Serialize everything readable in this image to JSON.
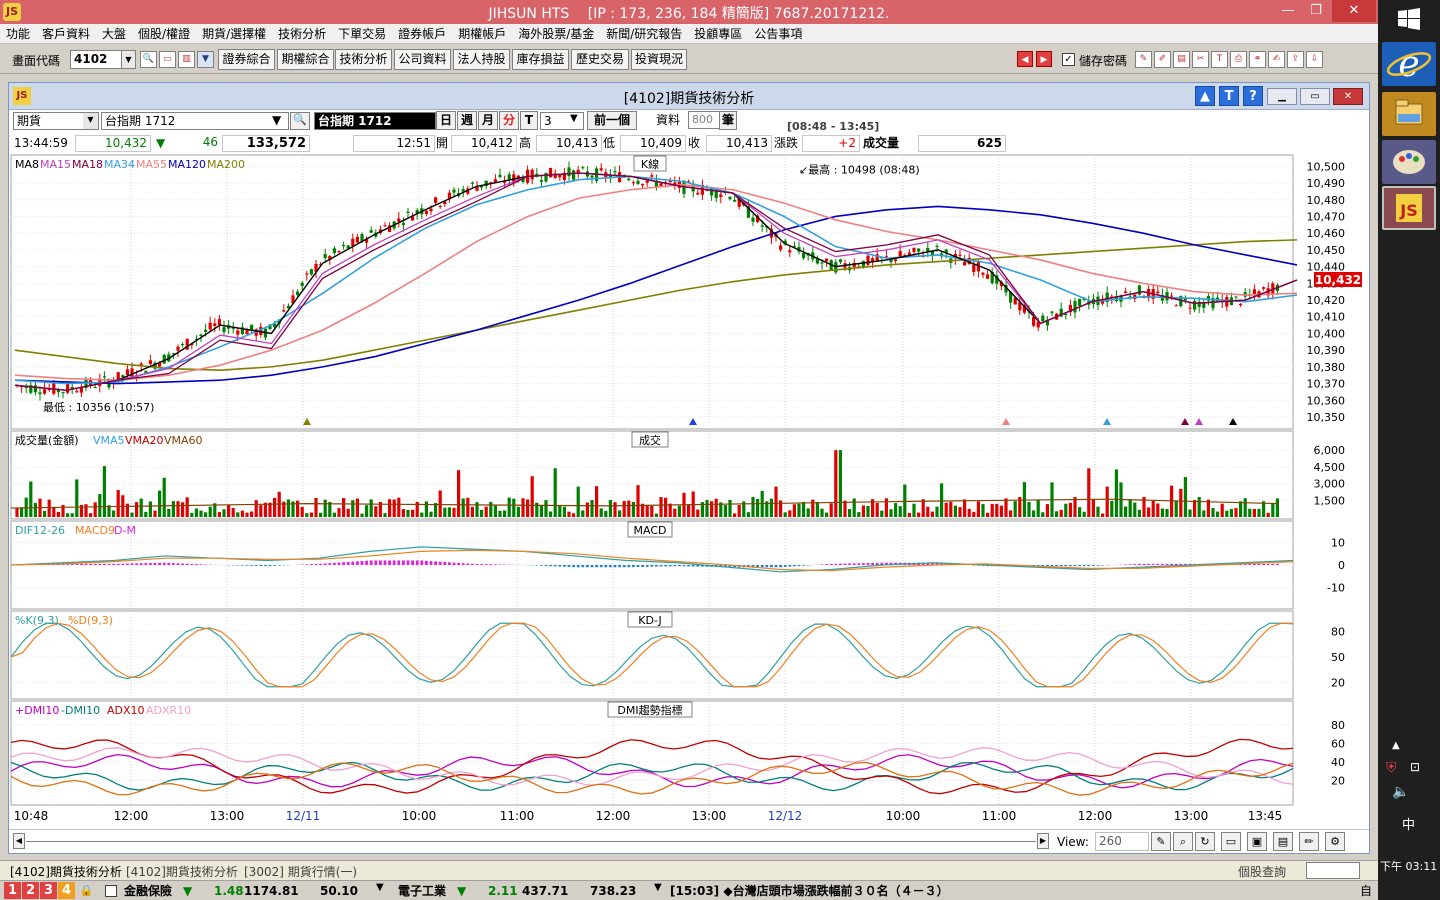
{
  "window": {
    "title": "JIHSUN HTS　 [IP : 173, 236, 184 精簡版] 7687.20171212.",
    "min": "—",
    "max": "❐",
    "close": "✕",
    "logo": "JS"
  },
  "menu": [
    "功能",
    "客戶資料",
    "大盤",
    "個股/權證",
    "期貨/選擇權",
    "技術分析",
    "下單交易",
    "證券帳戶",
    "期權帳戶",
    "海外股票/基金",
    "新聞/研究報告",
    "投顧專區",
    "公告事項"
  ],
  "toolbar": {
    "code_label": "畫面代碼",
    "code_value": "4102",
    "buttons": [
      "證券綜合",
      "期權綜合",
      "技術分析",
      "公司資料",
      "法人持股",
      "庫存損益",
      "歷史交易",
      "投資現況"
    ],
    "save_pw_label": "儲存密碼"
  },
  "inner": {
    "title": "[4102]期貨技術分析",
    "btn_up": "▲",
    "btn_t": "T",
    "btn_q": "?",
    "logo": "JS"
  },
  "controls": {
    "type": "期貨",
    "product": "台指期 1712",
    "product_dark": "台指期 1712",
    "periods": [
      "日",
      "週",
      "月",
      "分",
      "T"
    ],
    "interval": "3",
    "next_label": "前一個",
    "data_label": "資料",
    "data_count": "800",
    "unit": "筆",
    "session": "[08:48 - 13:45]"
  },
  "quote": {
    "time": "13:44:59",
    "price": "10,432",
    "arrow": "▼",
    "change": "46",
    "volume": "133,572",
    "bar_time": "12:51",
    "open_label": "開",
    "open": "10,412",
    "high_label": "高",
    "high": "10,413",
    "low_label": "低",
    "low": "10,409",
    "close_label": "收",
    "close": "10,413",
    "chg_label": "漲跌",
    "chg": "+2",
    "vol_label": "成交量",
    "vol": "625"
  },
  "panels": {
    "k": {
      "title": "K線",
      "legend": [
        {
          "text": "MA8",
          "color": "#000000"
        },
        {
          "text": "MA15",
          "color": "#c040c0"
        },
        {
          "text": "MA18",
          "color": "#800040"
        },
        {
          "text": "MA34",
          "color": "#30a0e0"
        },
        {
          "text": "MA55",
          "color": "#f08080"
        },
        {
          "text": "MA120",
          "color": "#0000c0"
        },
        {
          "text": "MA200",
          "color": "#808000"
        }
      ],
      "high_note": "最高 : 10498 (08:48)",
      "low_note": "最低 : 10356 (10:57)",
      "price_tag": "10,432"
    },
    "vol": {
      "title": "成交",
      "legend": [
        {
          "text": "成交量(金額)",
          "color": "#000000"
        },
        {
          "text": "VMA5",
          "color": "#30a0e0"
        },
        {
          "text": "VMA20",
          "color": "#c00000"
        },
        {
          "text": "VMA60",
          "color": "#804000"
        }
      ]
    },
    "macd": {
      "title": "MACD",
      "legend": [
        {
          "text": "DIF12-26",
          "color": "#30a0a0"
        },
        {
          "text": "MACD9",
          "color": "#f08020"
        },
        {
          "text": "D-M",
          "color": "#e020e0"
        }
      ]
    },
    "kd": {
      "title": "KD-J",
      "legend": [
        {
          "text": "%K(9,3)",
          "color": "#30a0a0"
        },
        {
          "text": "%D(9,3)",
          "color": "#f08020"
        }
      ]
    },
    "dmi": {
      "title": "DMI趨勢指標",
      "legend": [
        {
          "text": "+DMI10",
          "color": "#c000c0"
        },
        {
          "text": "-DMI10",
          "color": "#008080"
        },
        {
          "text": "ADX10",
          "color": "#c00000"
        },
        {
          "text": "ADXR10",
          "color": "#f0a0d0"
        }
      ]
    }
  },
  "chart_data": [
    {
      "type": "line",
      "title": "K線",
      "y_ticks": [
        10500,
        10490,
        10480,
        10470,
        10460,
        10450,
        10440,
        10430,
        10420,
        10410,
        10400,
        10390,
        10380,
        10370,
        10360,
        10350
      ],
      "ylim": [
        10350,
        10502
      ],
      "x_ticks": [
        "10:48",
        "12:00",
        "13:00",
        "12/11",
        "10:00",
        "11:00",
        "12:00",
        "13:00",
        "12/12",
        "10:00",
        "11:00",
        "12:00",
        "13:00",
        "13:45"
      ],
      "series": [
        {
          "name": "MA200",
          "values": [
            10390,
            10386,
            10382,
            10379,
            10378,
            10380,
            10384,
            10390,
            10396,
            10402,
            10408,
            10414,
            10420,
            10426,
            10431,
            10435,
            10438,
            10441,
            10443,
            10445,
            10447,
            10449,
            10451,
            10453,
            10455,
            10456
          ]
        },
        {
          "name": "MA120",
          "values": [
            10372,
            10371,
            10370,
            10371,
            10372,
            10375,
            10380,
            10386,
            10394,
            10402,
            10411,
            10420,
            10430,
            10441,
            10452,
            10462,
            10470,
            10474,
            10476,
            10474,
            10471,
            10466,
            10460,
            10453,
            10447,
            10441
          ]
        },
        {
          "name": "MA55",
          "values": [
            10375,
            10373,
            10372,
            10375,
            10381,
            10390,
            10402,
            10418,
            10436,
            10455,
            10470,
            10481,
            10486,
            10489,
            10486,
            10478,
            10468,
            10461,
            10456,
            10450,
            10444,
            10436,
            10430,
            10425,
            10423,
            10424
          ]
        },
        {
          "name": "MA34",
          "values": [
            10372,
            10370,
            10371,
            10380,
            10392,
            10405,
            10424,
            10445,
            10463,
            10477,
            10486,
            10492,
            10494,
            10491,
            10484,
            10470,
            10452,
            10445,
            10447,
            10442,
            10432,
            10419,
            10422,
            10421,
            10419,
            10423
          ]
        },
        {
          "name": "MA8",
          "values": [
            10369,
            10366,
            10372,
            10385,
            10405,
            10400,
            10442,
            10459,
            10474,
            10488,
            10494,
            10496,
            10494,
            10488,
            10484,
            10454,
            10440,
            10444,
            10450,
            10438,
            10406,
            10419,
            10425,
            10418,
            10420,
            10432
          ]
        }
      ],
      "markers": {
        "high": 10498,
        "low": 10356
      }
    },
    {
      "type": "bar",
      "title": "成交",
      "y_ticks": [
        6000,
        4500,
        3000,
        1500
      ],
      "ylim": [
        0,
        7000
      ]
    },
    {
      "type": "line",
      "title": "MACD",
      "y_ticks": [
        10,
        0,
        -10
      ],
      "ylim": [
        -15,
        15
      ]
    },
    {
      "type": "line",
      "title": "KD-J",
      "y_ticks": [
        80,
        50,
        20
      ],
      "ylim": [
        10,
        95
      ]
    },
    {
      "type": "line",
      "title": "DMI趨勢指標",
      "y_ticks": [
        80,
        60,
        40,
        20
      ],
      "ylim": [
        0,
        95
      ]
    }
  ],
  "viewbar": {
    "view_label": "View:",
    "view_value": "260"
  },
  "tabs": [
    "[4102]期貨技術分析",
    "[4102]期貨技術分析",
    "[3002]  期貨行情(一)"
  ],
  "stock_query": "個股查詢",
  "ticker": {
    "nums": [
      "1",
      "2",
      "3",
      "4"
    ],
    "s1_name": "金融保險",
    "s1_arrow": "▼",
    "s1_chg": "1.48",
    "s1_idx": "1174.81",
    "s1_v": "50.10",
    "s2_name": "電子工業",
    "s2_arrow": "▼",
    "s2_chg": "2.11",
    "s2_idx": "437.71",
    "s2_v": "738.23",
    "news": "[15:03]  ◆台灣店頭市場漲跌幅前３０名（４－３）"
  },
  "charm": {
    "time": "下午 03:11",
    "ime": "中"
  }
}
